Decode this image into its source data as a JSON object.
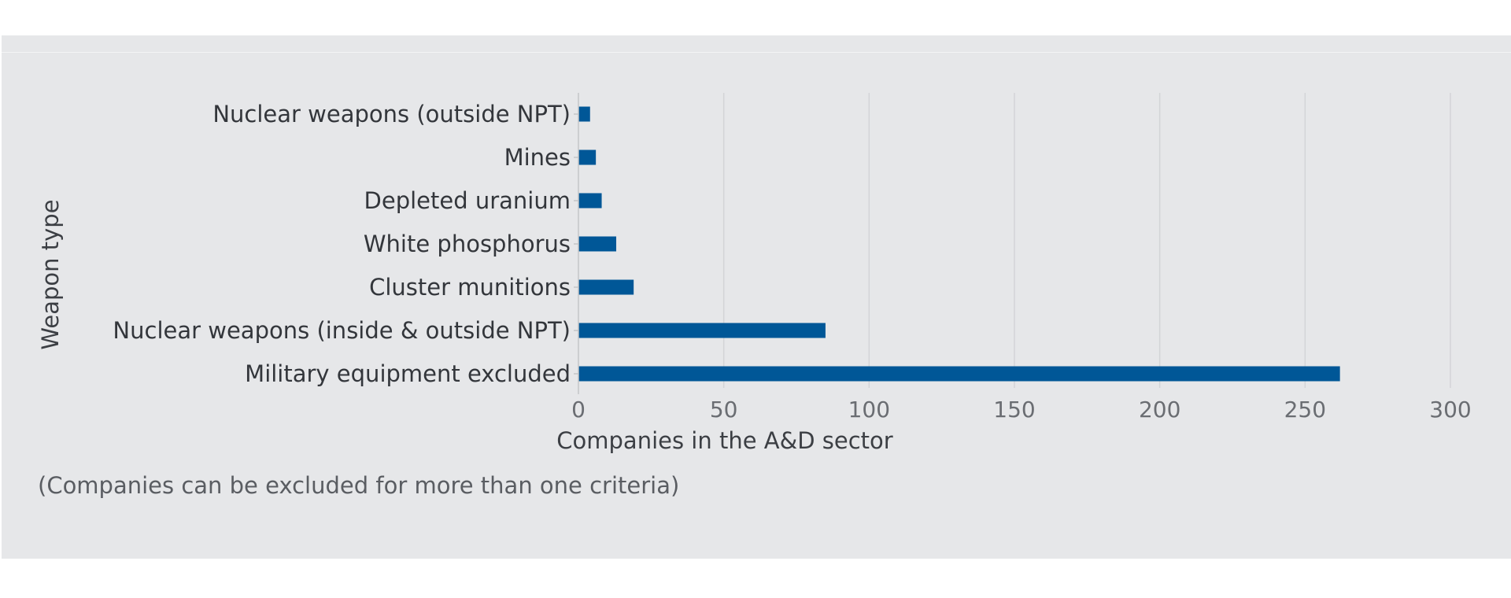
{
  "chart_data": {
    "type": "bar",
    "orientation": "horizontal",
    "categories": [
      "Nuclear weapons (outside NPT)",
      "Mines",
      "Depleted uranium",
      "White phosphorus",
      "Cluster munitions",
      "Nuclear weapons (inside & outside NPT)",
      "Military equipment excluded"
    ],
    "values": [
      4,
      6,
      8,
      13,
      19,
      85,
      262
    ],
    "xlabel": "Companies in the A&D sector",
    "ylabel": "Weapon type",
    "xlim": [
      0,
      300
    ],
    "xticks": [
      0,
      50,
      100,
      150,
      200,
      250,
      300
    ],
    "grid": "vertical",
    "bar_color": "#005797",
    "background": "#e6e7e9"
  },
  "footnote": "(Companies can be excluded for more than one criteria)"
}
